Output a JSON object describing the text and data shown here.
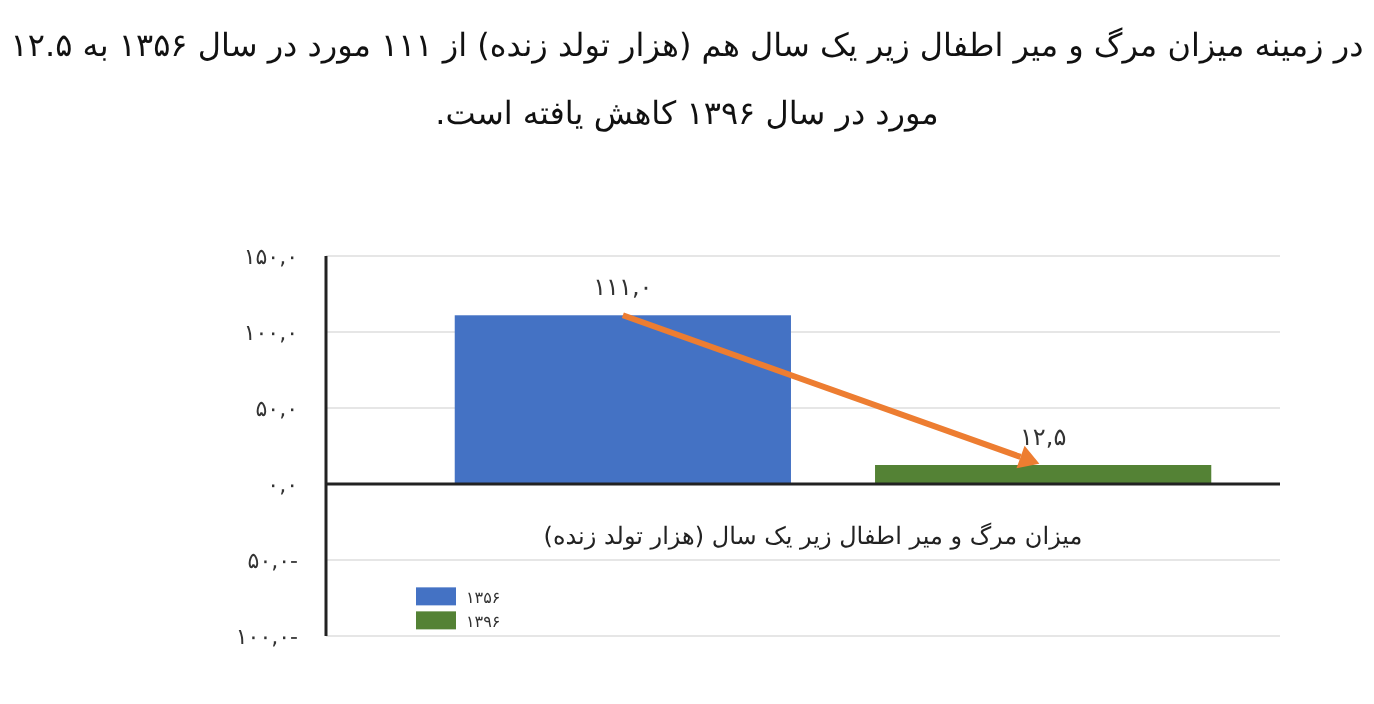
{
  "chart_data": {
    "type": "bar",
    "title": "در زمینه میزان مرگ و میر اطفال زیر یک سال هم (هزار تولد زنده) از ۱۱۱ مورد در سال ۱۳۵۶ به ۱۲.۵\nمورد در سال ۱۳۹۶ کاهش یافته است.",
    "categories": [
      "میزان مرگ و میر اطفال زیر یک سال (هزار تولد زنده)"
    ],
    "series": [
      {
        "name": "۱۳۵۶",
        "color": "#4472c4",
        "values": [
          111
        ],
        "value_labels": [
          "۱۱۱,۰"
        ]
      },
      {
        "name": "۱۳۹۶",
        "color": "#548235",
        "values": [
          12.5
        ],
        "value_labels": [
          "۱۲,۵"
        ]
      }
    ],
    "ylim": [
      -100,
      150
    ],
    "yticks": [
      {
        "value": -100,
        "label": "۱۰۰,۰-"
      },
      {
        "value": -50,
        "label": "۵۰,۰-"
      },
      {
        "value": 0,
        "label": "۰,۰"
      },
      {
        "value": 50,
        "label": "۵۰,۰"
      },
      {
        "value": 100,
        "label": "۱۰۰,۰"
      },
      {
        "value": 150,
        "label": "۱۵۰,۰"
      }
    ],
    "grid": "y",
    "legend": "bottom left"
  }
}
